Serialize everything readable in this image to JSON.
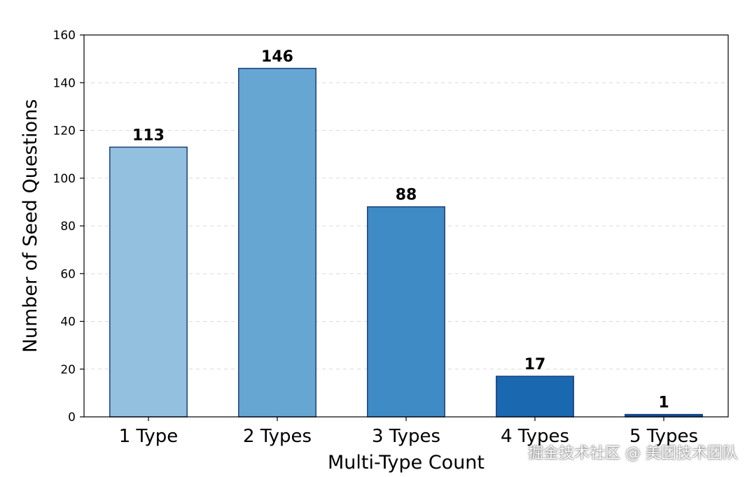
{
  "chart_data": {
    "type": "bar",
    "categories": [
      "1 Type",
      "2 Types",
      "3 Types",
      "4 Types",
      "5 Types"
    ],
    "values": [
      113,
      146,
      88,
      17,
      1
    ],
    "colors": [
      "#94c0df",
      "#66a6d2",
      "#3f8bc6",
      "#1a68b0",
      "#0d4f99"
    ],
    "xlabel": "Multi-Type Count",
    "ylabel": "Number of Seed Questions",
    "ylim": [
      0,
      160
    ],
    "yticks": [
      0,
      20,
      40,
      60,
      80,
      100,
      120,
      140,
      160
    ],
    "grid": "horizontal dashed",
    "data_labels": true
  },
  "watermark": "掘金技术社区 @ 美团技术团队"
}
